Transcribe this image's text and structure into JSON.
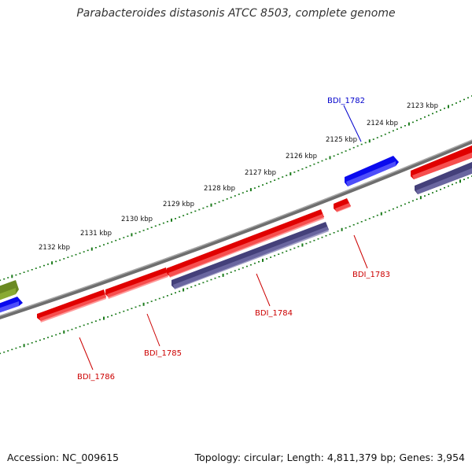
{
  "title": "Parabacteroides distasonis ATCC 8503, complete genome",
  "footer": {
    "accession": "Accession: NC_009615",
    "summary": "Topology: circular; Length: 4,811,379 bp; Genes: 3,954"
  },
  "colors": {
    "backbone": "#7a7a7a",
    "forward_gene": "#e00000",
    "forward_gene_blue": "#0000ee",
    "reverse_gene": "#44407a",
    "olive_gene": "#6b8a22",
    "tick": "#1a7a1a",
    "label_red": "#cc0000",
    "label_blue": "#0000cc"
  },
  "ticks": [
    {
      "label": "2123 kbp"
    },
    {
      "label": "2124 kbp"
    },
    {
      "label": "2125 kbp"
    },
    {
      "label": "2126 kbp"
    },
    {
      "label": "2127 kbp"
    },
    {
      "label": "2128 kbp"
    },
    {
      "label": "2129 kbp"
    },
    {
      "label": "2130 kbp"
    },
    {
      "label": "2131 kbp"
    },
    {
      "label": "2132 kbp"
    }
  ],
  "genes": [
    {
      "id": "BDI_1782",
      "strand": "forward",
      "color": "blue"
    },
    {
      "id": "BDI_1783",
      "strand": "forward",
      "color": "red"
    },
    {
      "id": "BDI_1784",
      "strand": "reverse",
      "color": "red"
    },
    {
      "id": "BDI_1785",
      "strand": "forward",
      "color": "red"
    },
    {
      "id": "BDI_1786",
      "strand": "forward",
      "color": "red"
    }
  ]
}
